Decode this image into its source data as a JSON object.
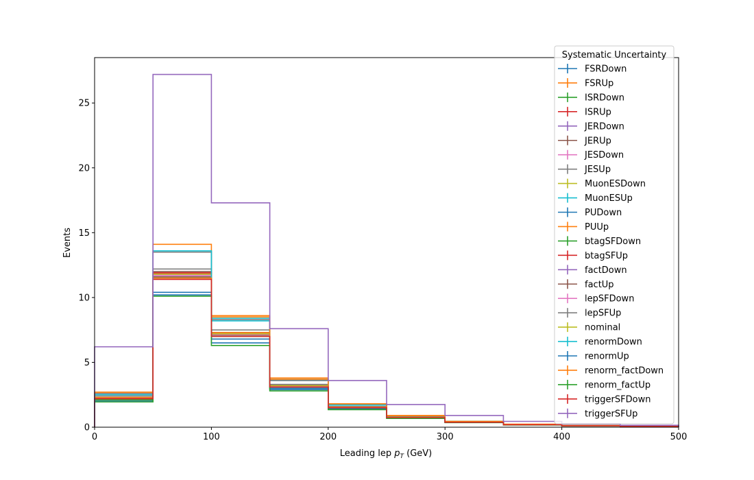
{
  "chart_data": {
    "type": "line",
    "drawstyle": "steps",
    "xlabel_main": "Leading lep ",
    "xlabel_var": "p",
    "xlabel_sub": "T",
    "xlabel_unit": " (GeV)",
    "ylabel": "Events",
    "xlim": [
      0,
      500
    ],
    "ylim": [
      0,
      28.5
    ],
    "x_ticks": [
      0,
      100,
      200,
      300,
      400,
      500
    ],
    "y_ticks": [
      0,
      5,
      10,
      15,
      20,
      25
    ],
    "bin_edges": [
      0,
      50,
      100,
      150,
      200,
      250,
      300,
      350,
      400,
      450,
      500
    ],
    "legend_title": "Systematic Uncertainty",
    "legend_position": "top-right",
    "grid": false,
    "series": [
      {
        "name": "FSRDown",
        "color": "#1f77b4",
        "values": [
          2.0,
          10.4,
          6.5,
          2.9,
          1.4,
          0.7,
          0.36,
          0.18,
          0.1,
          0.06
        ]
      },
      {
        "name": "FSRUp",
        "color": "#ff7f0e",
        "values": [
          2.7,
          14.1,
          8.6,
          3.8,
          1.8,
          0.9,
          0.46,
          0.23,
          0.13,
          0.07
        ]
      },
      {
        "name": "ISRDown",
        "color": "#2ca02c",
        "values": [
          2.2,
          11.7,
          7.1,
          3.1,
          1.5,
          0.75,
          0.38,
          0.19,
          0.11,
          0.06
        ]
      },
      {
        "name": "ISRUp",
        "color": "#d62728",
        "values": [
          2.2,
          11.8,
          7.2,
          3.2,
          1.5,
          0.76,
          0.39,
          0.2,
          0.11,
          0.06
        ]
      },
      {
        "name": "JERDown",
        "color": "#9467bd",
        "values": [
          2.2,
          11.9,
          7.3,
          3.2,
          1.55,
          0.77,
          0.39,
          0.2,
          0.11,
          0.06
        ]
      },
      {
        "name": "JERUp",
        "color": "#8c564b",
        "values": [
          2.25,
          12.0,
          7.3,
          3.25,
          1.55,
          0.78,
          0.4,
          0.2,
          0.11,
          0.06
        ]
      },
      {
        "name": "JESDown",
        "color": "#e377c2",
        "values": [
          2.1,
          11.5,
          7.0,
          3.1,
          1.5,
          0.74,
          0.38,
          0.19,
          0.1,
          0.06
        ]
      },
      {
        "name": "JESUp",
        "color": "#7f7f7f",
        "values": [
          2.4,
          12.2,
          7.5,
          3.3,
          1.6,
          0.8,
          0.4,
          0.2,
          0.12,
          0.07
        ]
      },
      {
        "name": "MuonESDown",
        "color": "#bcbd22",
        "values": [
          2.2,
          11.8,
          7.2,
          3.2,
          1.5,
          0.76,
          0.39,
          0.2,
          0.11,
          0.06
        ]
      },
      {
        "name": "MuonESUp",
        "color": "#17becf",
        "values": [
          2.6,
          13.6,
          8.2,
          3.6,
          1.7,
          0.86,
          0.44,
          0.22,
          0.12,
          0.07
        ]
      },
      {
        "name": "PUDown",
        "color": "#1f77b4",
        "values": [
          2.15,
          11.6,
          7.1,
          3.1,
          1.5,
          0.75,
          0.38,
          0.19,
          0.1,
          0.06
        ]
      },
      {
        "name": "PUUp",
        "color": "#ff7f0e",
        "values": [
          2.3,
          11.9,
          7.3,
          3.2,
          1.55,
          0.77,
          0.39,
          0.2,
          0.11,
          0.06
        ]
      },
      {
        "name": "btagSFDown",
        "color": "#2ca02c",
        "values": [
          2.1,
          11.5,
          7.0,
          3.0,
          1.45,
          0.73,
          0.37,
          0.19,
          0.1,
          0.06
        ]
      },
      {
        "name": "btagSFUp",
        "color": "#d62728",
        "values": [
          2.2,
          11.9,
          7.2,
          3.2,
          1.5,
          0.76,
          0.39,
          0.2,
          0.11,
          0.06
        ]
      },
      {
        "name": "factDown",
        "color": "#9467bd",
        "values": [
          2.2,
          11.8,
          7.2,
          3.15,
          1.5,
          0.76,
          0.39,
          0.2,
          0.11,
          0.06
        ]
      },
      {
        "name": "factUp",
        "color": "#8c564b",
        "values": [
          2.2,
          11.6,
          7.1,
          3.1,
          1.5,
          0.75,
          0.38,
          0.19,
          0.1,
          0.06
        ]
      },
      {
        "name": "lepSFDown",
        "color": "#e377c2",
        "values": [
          2.2,
          11.7,
          7.15,
          3.15,
          1.5,
          0.75,
          0.38,
          0.19,
          0.11,
          0.06
        ]
      },
      {
        "name": "lepSFUp",
        "color": "#7f7f7f",
        "values": [
          2.6,
          13.5,
          8.3,
          3.6,
          1.75,
          0.87,
          0.44,
          0.22,
          0.12,
          0.07
        ]
      },
      {
        "name": "nominal",
        "color": "#bcbd22",
        "values": [
          2.2,
          11.8,
          7.2,
          3.2,
          1.5,
          0.76,
          0.39,
          0.2,
          0.11,
          0.06
        ]
      },
      {
        "name": "renormDown",
        "color": "#17becf",
        "values": [
          2.5,
          13.6,
          8.4,
          3.7,
          1.75,
          0.88,
          0.45,
          0.22,
          0.12,
          0.07
        ]
      },
      {
        "name": "renormUp",
        "color": "#1f77b4",
        "values": [
          2.0,
          10.2,
          6.8,
          3.0,
          1.45,
          0.72,
          0.37,
          0.18,
          0.1,
          0.06
        ]
      },
      {
        "name": "renorm_factDown",
        "color": "#ff7f0e",
        "values": [
          2.7,
          11.5,
          8.5,
          3.7,
          1.8,
          0.89,
          0.45,
          0.23,
          0.13,
          0.07
        ]
      },
      {
        "name": "renorm_factUp",
        "color": "#2ca02c",
        "values": [
          1.95,
          10.1,
          6.3,
          2.8,
          1.35,
          0.68,
          0.35,
          0.17,
          0.09,
          0.05
        ]
      },
      {
        "name": "triggerSFDown",
        "color": "#d62728",
        "values": [
          2.2,
          11.4,
          7.0,
          3.1,
          1.5,
          0.74,
          0.38,
          0.19,
          0.1,
          0.06
        ]
      },
      {
        "name": "triggerSFUp",
        "color": "#9467bd",
        "values": [
          6.2,
          27.2,
          17.3,
          7.6,
          3.6,
          1.75,
          0.9,
          0.45,
          0.25,
          0.15
        ]
      }
    ]
  }
}
